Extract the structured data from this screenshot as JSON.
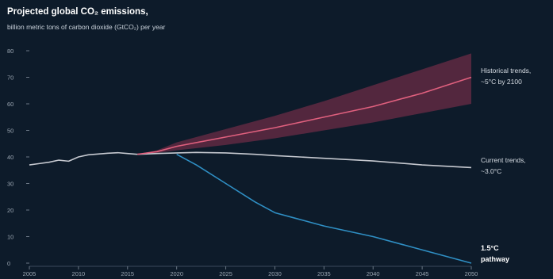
{
  "title": "Projected global CO₂ emissions,",
  "subtitle": "billion metric tons of carbon dioxide (GtCO₂) per year",
  "chart_data": {
    "type": "line",
    "title": "Projected global CO₂ emissions,",
    "subtitle": "billion metric tons of carbon dioxide (GtCO₂) per year",
    "xlabel": "",
    "ylabel": "",
    "xlim": [
      2005,
      2050
    ],
    "ylim": [
      0,
      80
    ],
    "x_ticks": [
      2005,
      2010,
      2015,
      2020,
      2025,
      2030,
      2035,
      2040,
      2045,
      2050
    ],
    "y_ticks": [
      0,
      10,
      20,
      30,
      40,
      50,
      60,
      70,
      80
    ],
    "grid": false,
    "series": [
      {
        "name": "Historical trends, ~5°C by 2100",
        "color": "#e0607e",
        "x": [
          2016,
          2018,
          2020,
          2025,
          2030,
          2035,
          2040,
          2045,
          2050
        ],
        "y": [
          41,
          42,
          44,
          47.5,
          51,
          55,
          59,
          64,
          70
        ],
        "band_low": [
          41,
          41.5,
          42.5,
          44.5,
          47,
          50,
          53,
          56.5,
          60
        ],
        "band_high": [
          41,
          42.5,
          45.5,
          50.5,
          55.5,
          61,
          67,
          73,
          79
        ]
      },
      {
        "name": "Current trends, ~3.0°C",
        "color": "#c6c9d0",
        "x": [
          2016,
          2018,
          2020,
          2022,
          2025,
          2028,
          2030,
          2035,
          2040,
          2045,
          2050
        ],
        "y": [
          41,
          41.3,
          41.5,
          41.7,
          41.5,
          41,
          40.5,
          39.5,
          38.5,
          37,
          36
        ]
      },
      {
        "name": "1.5°C pathway",
        "color": "#2f8fc4",
        "x": [
          2020,
          2022,
          2025,
          2028,
          2030,
          2032,
          2035,
          2040,
          2045,
          2050
        ],
        "y": [
          41,
          37,
          30,
          23,
          19,
          17,
          14,
          10,
          5,
          0
        ]
      },
      {
        "name": "Historical",
        "color": "#c6c9d0",
        "x": [
          2005,
          2006,
          2007,
          2008,
          2009,
          2010,
          2011,
          2012,
          2013,
          2014,
          2015,
          2016
        ],
        "y": [
          37,
          37.5,
          38,
          38.8,
          38.4,
          40,
          40.8,
          41.1,
          41.4,
          41.6,
          41.3,
          41
        ]
      }
    ],
    "annotations": {
      "historical_line1": "Historical trends,",
      "historical_line2": "~5°C by 2100",
      "current_line1": "Current trends,",
      "current_line2": "~3.0°C",
      "pathway_line1": "1.5°C",
      "pathway_line2": "pathway"
    }
  }
}
